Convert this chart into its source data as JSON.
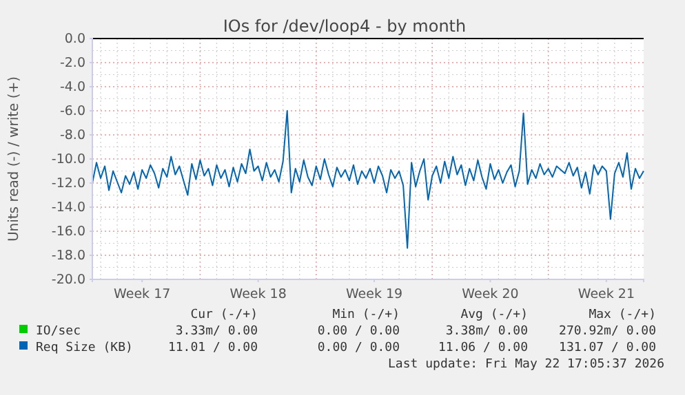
{
  "chart_data": {
    "type": "line",
    "title": "IOs for /dev/loop4 - by month",
    "ylabel": "Units read (-) / write (+)",
    "categories": [
      null,
      null,
      null,
      null,
      null,
      null,
      null,
      null,
      null,
      null,
      null,
      null,
      "Week 17",
      null,
      null,
      null,
      null,
      null,
      null,
      null,
      null,
      null,
      null,
      null,
      null,
      null,
      null,
      null,
      null,
      null,
      null,
      null,
      null,
      null,
      null,
      null,
      null,
      null,
      null,
      null,
      "Week 18",
      null,
      null,
      null,
      null,
      null,
      null,
      null,
      null,
      null,
      null,
      null,
      null,
      null,
      null,
      null,
      null,
      null,
      null,
      null,
      null,
      null,
      null,
      null,
      null,
      null,
      null,
      null,
      "Week 19",
      null,
      null,
      null,
      null,
      null,
      null,
      null,
      null,
      null,
      null,
      null,
      null,
      null,
      null,
      null,
      null,
      null,
      null,
      null,
      null,
      null,
      null,
      null,
      null,
      null,
      null,
      null,
      "Week 20",
      null,
      null,
      null,
      null,
      null,
      null,
      null,
      null,
      null,
      null,
      null,
      null,
      null,
      null,
      null,
      null,
      null,
      null,
      null,
      null,
      null,
      null,
      null,
      null,
      null,
      null,
      null,
      "Week 21",
      null,
      null,
      null,
      null,
      null,
      null,
      null,
      null,
      null
    ],
    "ylim": [
      -20,
      0
    ],
    "yticks": [
      {
        "value": 0,
        "label": "0.0"
      },
      {
        "value": -2,
        "label": "-2.0"
      },
      {
        "value": -4,
        "label": "-4.0"
      },
      {
        "value": -6,
        "label": "-6.0"
      },
      {
        "value": -8,
        "label": "-8.0"
      },
      {
        "value": -10,
        "label": "-10.0"
      },
      {
        "value": -12,
        "label": "-12.0"
      },
      {
        "value": -14,
        "label": "-14.0"
      },
      {
        "value": -16,
        "label": "-16.0"
      },
      {
        "value": -18,
        "label": "-18.0"
      },
      {
        "value": -20,
        "label": "-20.0"
      }
    ],
    "grid": true,
    "legend": "bottom left",
    "line_style": "solid",
    "marker": "none",
    "ref_lines": [
      {
        "axis": "y",
        "value": 0,
        "color": "#000000"
      }
    ],
    "series": [
      {
        "name": "IO/sec",
        "color": "#00cc00",
        "values": [
          null,
          null,
          null,
          null,
          null,
          null,
          null,
          null,
          null,
          null,
          null,
          null,
          null,
          null,
          null,
          null,
          null,
          null,
          null,
          null,
          null,
          null,
          null,
          null,
          null,
          null,
          null,
          null,
          null,
          null,
          null,
          null,
          null,
          null,
          null,
          null,
          null,
          null,
          null,
          null,
          null,
          null,
          null,
          null,
          null,
          null,
          null,
          null,
          null,
          null,
          null,
          null,
          null,
          null,
          null,
          null,
          null,
          null,
          null,
          null,
          null,
          null,
          null,
          null,
          null,
          null,
          null,
          null,
          null,
          null,
          null,
          null,
          null,
          null,
          null,
          null,
          null,
          null,
          null,
          null,
          null,
          null,
          null,
          null,
          null,
          null,
          null,
          null,
          null,
          null,
          null,
          null,
          null,
          null,
          null,
          null,
          null,
          null,
          null,
          null,
          null,
          null,
          null,
          null,
          null,
          null,
          null,
          null,
          null,
          null,
          null,
          null,
          null,
          null,
          null,
          null,
          null,
          null,
          null,
          null,
          null,
          null,
          null,
          null,
          null,
          null,
          null,
          null,
          null,
          null,
          null,
          null,
          null,
          null
        ]
      },
      {
        "name": "Req Size (KB)",
        "color": "#0066b3",
        "values": [
          -12.0,
          -10.3,
          -11.6,
          -10.6,
          -12.6,
          -11.0,
          -11.9,
          -12.8,
          -11.4,
          -12.1,
          -11.1,
          -12.5,
          -10.9,
          -11.6,
          -10.5,
          -11.2,
          -12.4,
          -10.8,
          -11.5,
          -9.8,
          -11.3,
          -10.6,
          -11.8,
          -13.0,
          -10.4,
          -11.7,
          -10.1,
          -11.4,
          -10.8,
          -12.2,
          -10.5,
          -11.6,
          -10.9,
          -12.3,
          -10.7,
          -11.9,
          -10.4,
          -11.2,
          -9.2,
          -11.0,
          -10.6,
          -11.8,
          -10.3,
          -11.5,
          -10.9,
          -11.9,
          -10.2,
          -6.0,
          -12.8,
          -10.8,
          -11.9,
          -10.1,
          -11.5,
          -12.2,
          -10.6,
          -11.7,
          -10.0,
          -11.3,
          -12.3,
          -10.7,
          -11.5,
          -10.9,
          -11.8,
          -10.5,
          -12.1,
          -11.0,
          -11.6,
          -10.8,
          -12.0,
          -10.6,
          -11.4,
          -12.8,
          -10.9,
          -11.6,
          -11.0,
          -12.2,
          -17.4,
          -10.3,
          -12.3,
          -11.0,
          -10.0,
          -13.4,
          -11.4,
          -10.6,
          -12.0,
          -10.2,
          -11.6,
          -9.8,
          -11.3,
          -10.5,
          -12.2,
          -10.8,
          -11.8,
          -10.1,
          -11.5,
          -12.5,
          -10.4,
          -11.7,
          -10.9,
          -12.0,
          -11.1,
          -10.5,
          -12.3,
          -11.0,
          -6.2,
          -12.1,
          -10.9,
          -11.6,
          -10.4,
          -11.3,
          -10.8,
          -11.5,
          -10.6,
          -10.9,
          -11.2,
          -10.3,
          -11.4,
          -10.7,
          -12.4,
          -11.1,
          -12.9,
          -10.5,
          -11.3,
          -10.6,
          -11.0,
          -15.0,
          -11.2,
          -10.3,
          -11.5,
          -9.5,
          -12.5,
          -10.8,
          -11.6,
          -11.0
        ]
      }
    ],
    "annotations": [
      "Cur (-/+)",
      "Min (-/+)",
      "Avg (-/+)",
      "Max (-/+)",
      "3.33m/ 0.00",
      "0.00 / 0.00",
      "3.38m/ 0.00",
      "270.92m/ 0.00",
      "11.01 / 0.00",
      "0.00 / 0.00",
      "11.06 / 0.00",
      "131.07 / 0.00",
      "Last update: Fri May 22 17:05:37 2026"
    ]
  }
}
